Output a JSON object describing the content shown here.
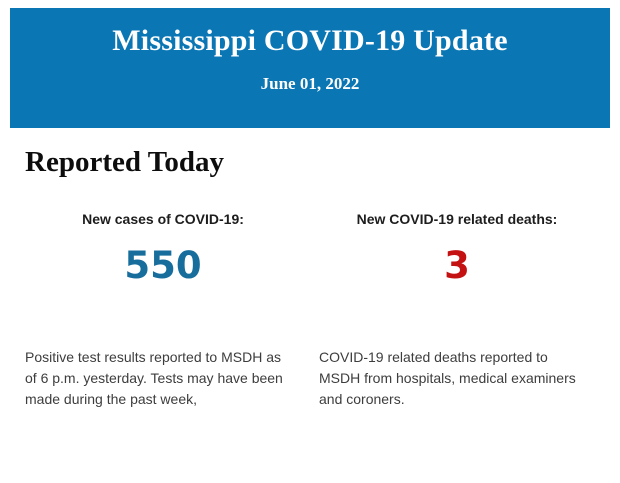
{
  "header": {
    "title": "Mississippi COVID-19 Update",
    "date": "June 01, 2022",
    "bg_color": "#0a76b4",
    "text_color": "#ffffff"
  },
  "section": {
    "title": "Reported Today"
  },
  "stats": {
    "columns": [
      {
        "label": "New cases of COVID-19:",
        "value": "550",
        "value_color": "#176e9c",
        "lines": [
          "Positive test results reported to MSDH as",
          "of 6 p.m. yesterday. Tests may have been",
          "made during the past week,"
        ]
      },
      {
        "label": "New COVID-19 related deaths:",
        "value": "3",
        "value_color": "#c41112",
        "lines": [
          "COVID-19 related deaths reported to",
          "MSDH from hospitals, medical examiners",
          "and coroners."
        ]
      }
    ]
  }
}
